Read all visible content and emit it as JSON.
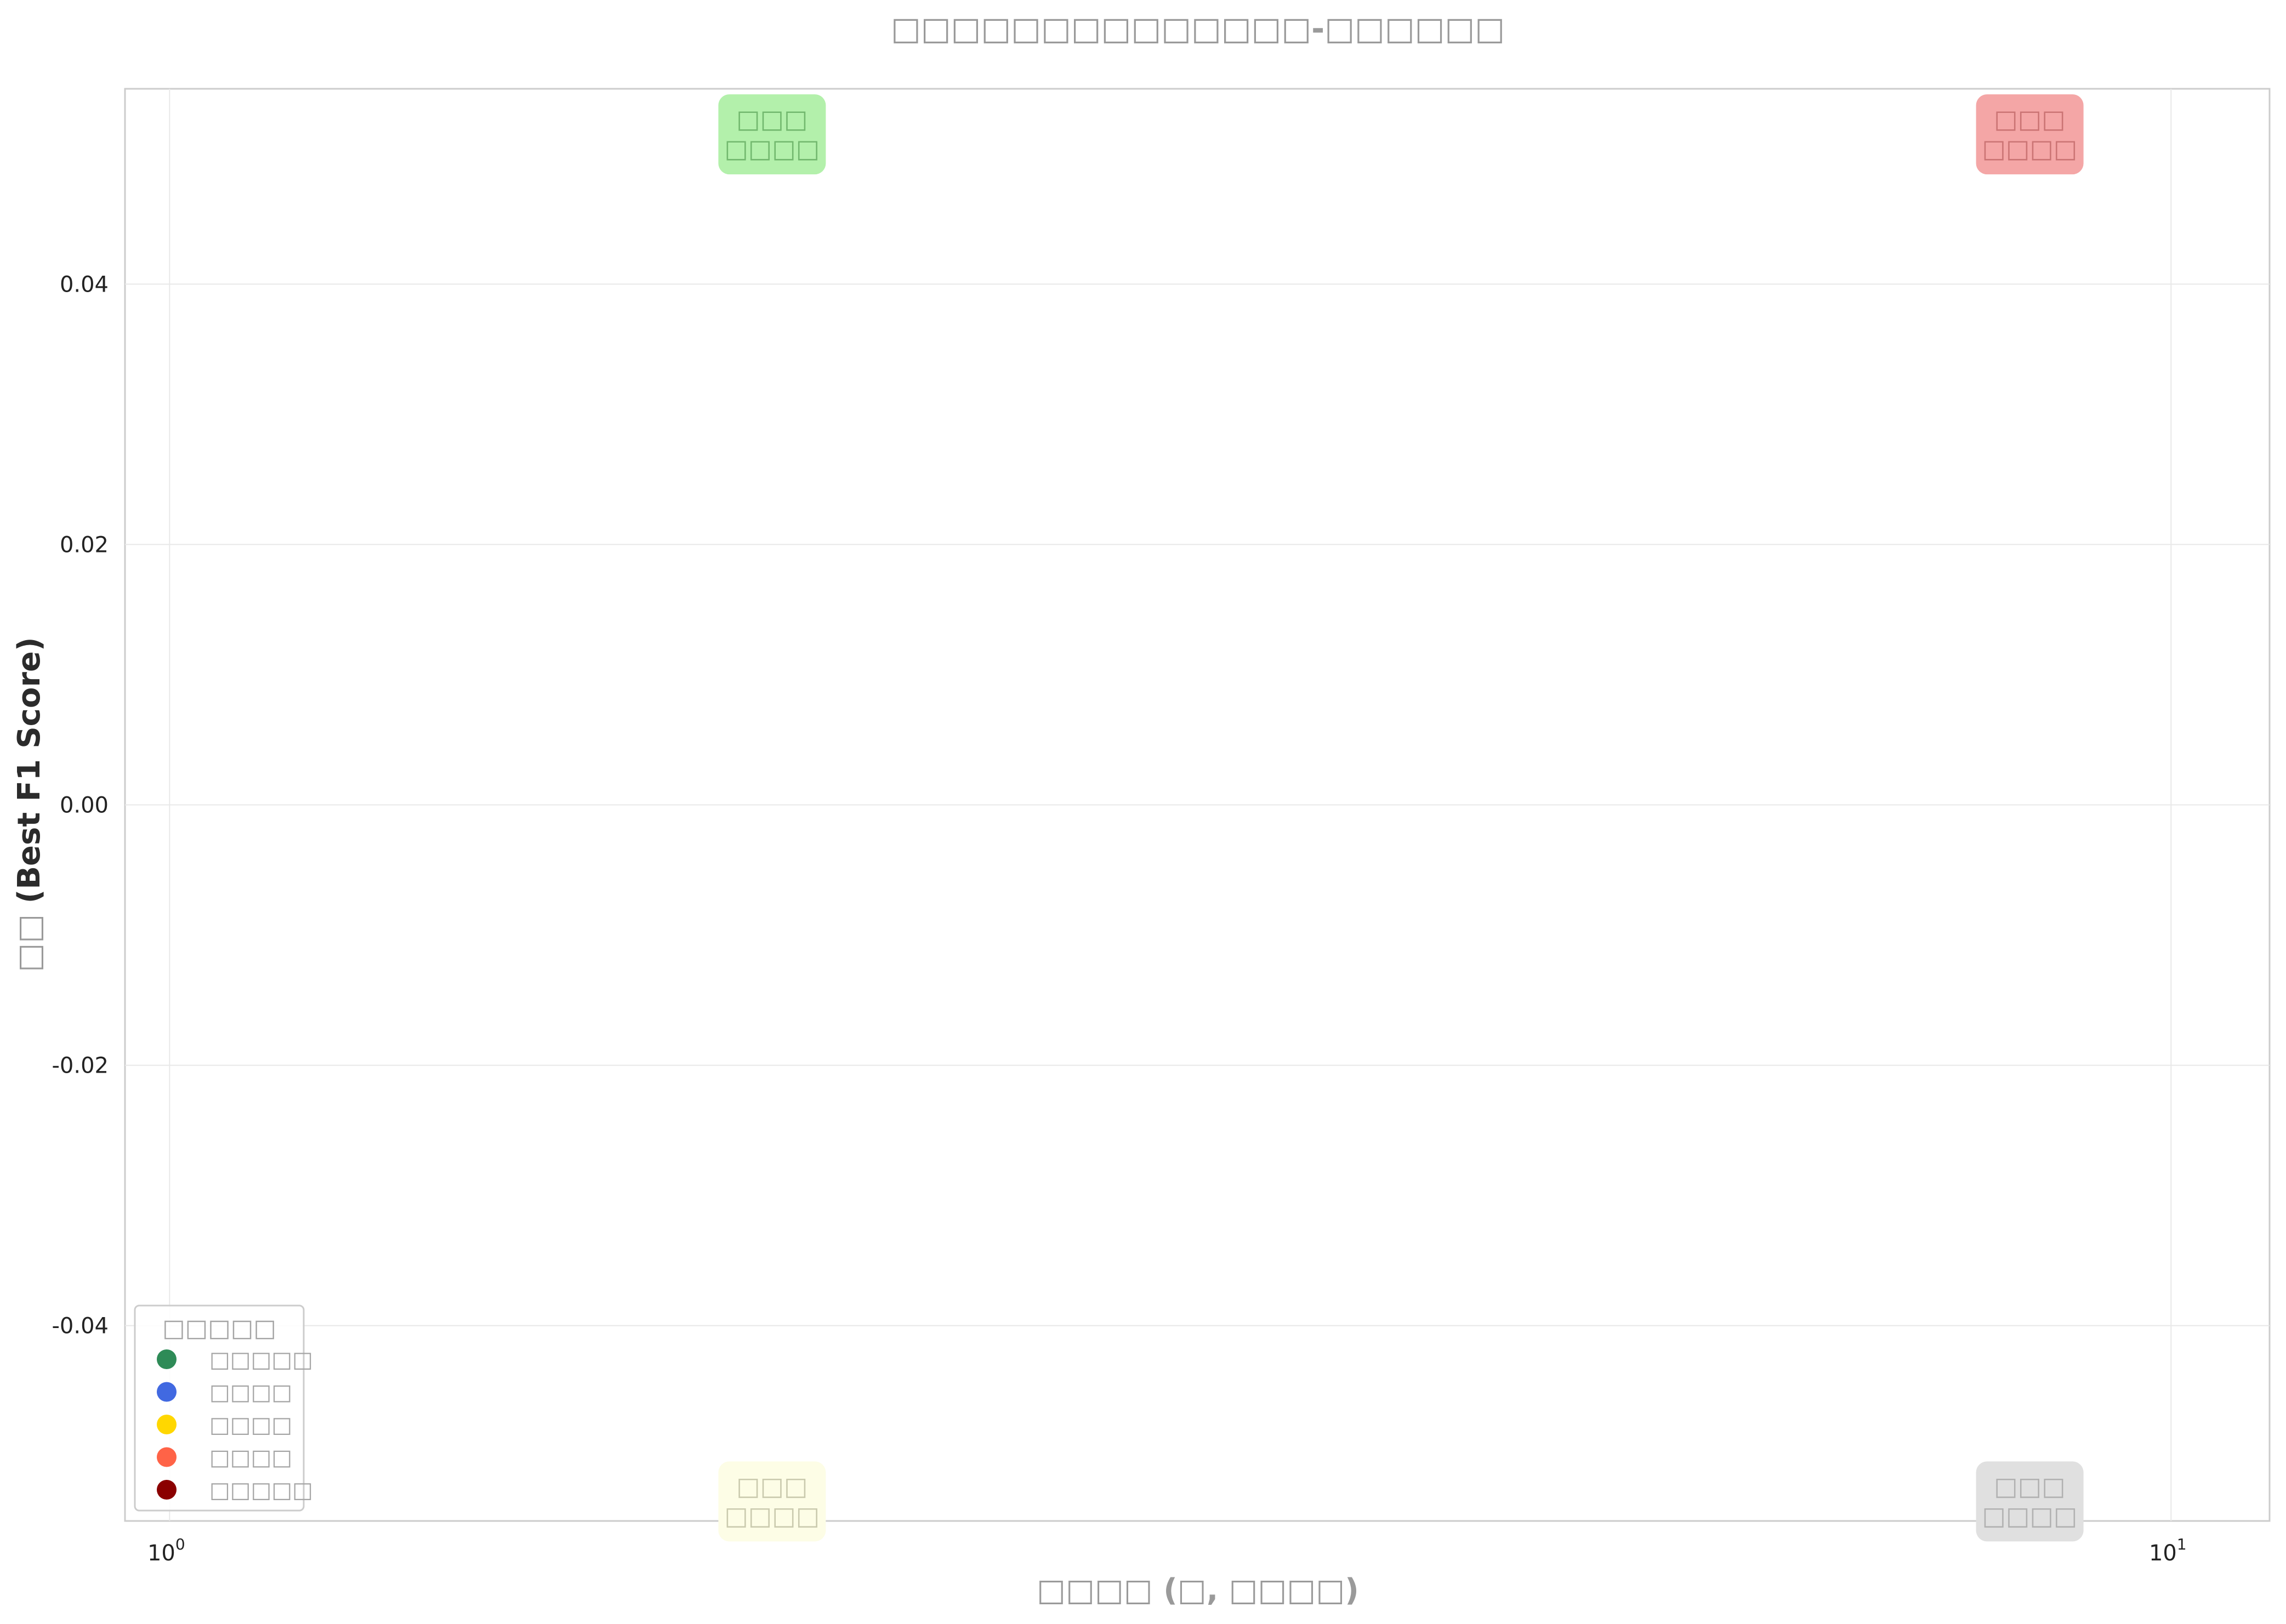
{
  "chart_data": {
    "type": "scatter",
    "title": "□□□□□□□□□□□□□□-□□□□□□",
    "xlabel_prefix": "□□□□ (",
    "xlabel_box": "□",
    "xlabel_mid": ", ",
    "xlabel_box2": "□□□□",
    "xlabel_suffix": ")",
    "ylabel_prefix": "□□ ",
    "ylabel_main": "(Best F1 Score)",
    "x_scale": "log",
    "xlim": [
      0.95,
      11.2
    ],
    "ylim": [
      -0.055,
      0.055
    ],
    "x_ticks": [
      {
        "value": 1,
        "base": "10",
        "exp": "0"
      },
      {
        "value": 10,
        "base": "10",
        "exp": "1"
      }
    ],
    "y_ticks": [
      {
        "value": 0.04,
        "label": "0.04"
      },
      {
        "value": 0.02,
        "label": "0.02"
      },
      {
        "value": 0.0,
        "label": "0.00"
      },
      {
        "value": -0.02,
        "label": "-0.02"
      },
      {
        "value": -0.04,
        "label": "-0.04"
      }
    ],
    "grid": true,
    "series": [],
    "quadrants": [
      {
        "line1": "□□□",
        "line2": "□□□□",
        "x": 2,
        "y": 0.0515,
        "bg": "#b3f0ab",
        "fg": "#3c8a3c",
        "position": "top-left"
      },
      {
        "line1": "□□□",
        "line2": "□□□□",
        "x": 8.5,
        "y": 0.0515,
        "bg": "#f4a6a6",
        "fg": "#a94a4a",
        "position": "top-right"
      },
      {
        "line1": "□□□",
        "line2": "□□□□",
        "x": 2,
        "y": -0.0535,
        "bg": "#fdfde6",
        "fg": "#a0a080",
        "position": "bottom-left"
      },
      {
        "line1": "□□□",
        "line2": "□□□□",
        "x": 8.5,
        "y": -0.0535,
        "bg": "#e0e0e0",
        "fg": "#8a8a8a",
        "position": "bottom-right"
      }
    ],
    "legend": {
      "position": "bottom-left",
      "title": "□□□□□",
      "entries": [
        {
          "label": "□□□□□",
          "color": "#2e8b57"
        },
        {
          "label": "□□□□",
          "color": "#4169e1"
        },
        {
          "label": "□□□□",
          "color": "#ffd700"
        },
        {
          "label": "□□□□",
          "color": "#ff6347"
        },
        {
          "label": "□□□□□",
          "color": "#8b0000"
        }
      ]
    }
  }
}
